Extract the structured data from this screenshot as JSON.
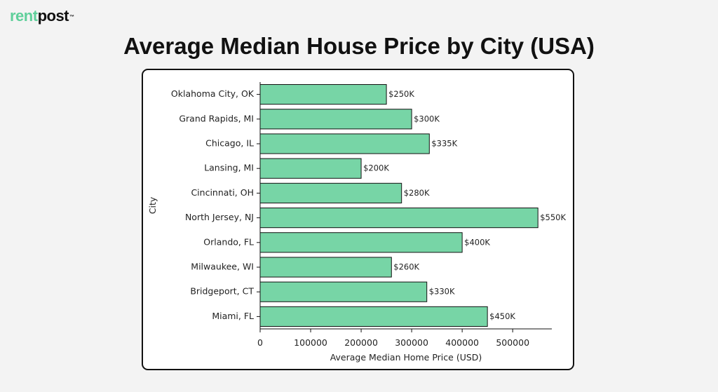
{
  "brand": {
    "logo_part_a": "rent",
    "logo_part_b": "post",
    "logo_mark": "™"
  },
  "page_title": "Average Median House Price by City (USA)",
  "colors": {
    "bar_fill": "#77d5a6",
    "bar_stroke": "#111111",
    "brand_green": "#5fcf9a"
  },
  "chart_data": {
    "type": "bar",
    "orientation": "horizontal",
    "title": "",
    "xlabel": "Average Median Home Price (USD)",
    "ylabel": "City",
    "categories": [
      "Oklahoma City, OK",
      "Grand Rapids, MI",
      "Chicago, IL",
      "Lansing, MI",
      "Cincinnati, OH",
      "North Jersey, NJ",
      "Orlando, FL",
      "Milwaukee, WI",
      "Bridgeport, CT",
      "Miami, FL"
    ],
    "values": [
      250000,
      300000,
      335000,
      200000,
      280000,
      550000,
      400000,
      260000,
      330000,
      450000
    ],
    "data_labels": [
      "$250K",
      "$300K",
      "$335K",
      "$200K",
      "$280K",
      "$550K",
      "$400K",
      "$260K",
      "$330K",
      "$450K"
    ],
    "xticks": [
      0,
      100000,
      200000,
      300000,
      400000,
      500000
    ],
    "xtick_labels": [
      "0",
      "100000",
      "200000",
      "300000",
      "400000",
      "500000"
    ],
    "xlim": [
      0,
      577500
    ],
    "grid": false,
    "legend": "none"
  }
}
